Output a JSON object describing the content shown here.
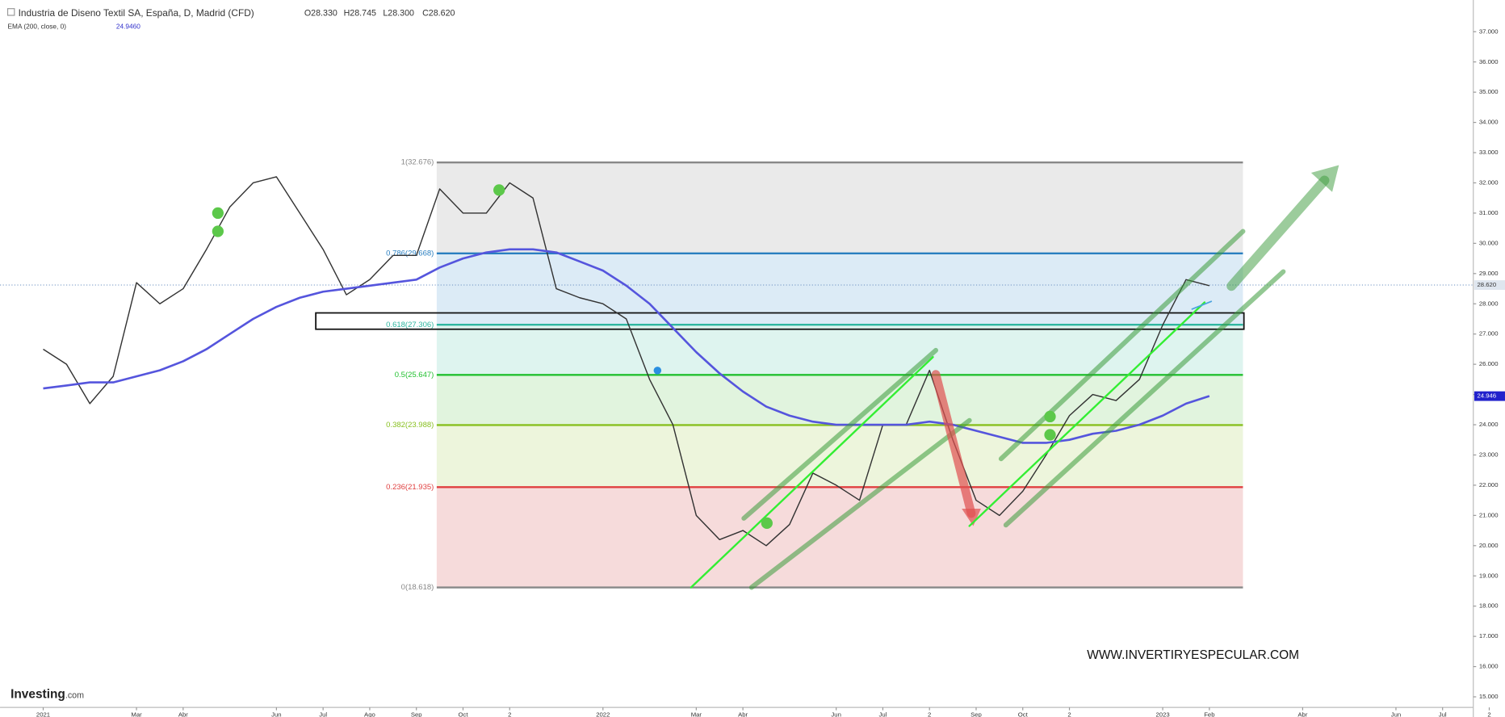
{
  "chart_data": {
    "type": "line",
    "title": "Industria de Diseno Textil SA, España, D, Madrid (CFD)",
    "ohlc": [
      "O28.330",
      "H28.745",
      "L28.300",
      "C28.620"
    ],
    "ema_header_value": "24.9460",
    "categories": [
      "2021",
      null,
      null,
      null,
      "Mar",
      null,
      "Abr",
      null,
      null,
      null,
      "Jun",
      null,
      "Jul",
      null,
      "Ago",
      null,
      "Sep",
      null,
      "Oct",
      null,
      "2",
      null,
      null,
      null,
      "2022",
      null,
      null,
      null,
      "Mar",
      null,
      "Abr",
      null,
      null,
      null,
      "Jun",
      null,
      "Jul",
      null,
      "2",
      null,
      "Sep",
      null,
      "Oct",
      null,
      "2",
      null,
      null,
      null,
      "2023",
      null,
      "Feb",
      null,
      null,
      null,
      "Abr",
      null,
      null,
      null,
      "Jun",
      null,
      "Jul",
      null,
      "2",
      null
    ],
    "series": [
      {
        "color": "#333333",
        "values": [
          26.5,
          26.0,
          24.7,
          25.6,
          28.7,
          28.0,
          28.5,
          29.8,
          31.2,
          32.0,
          32.2,
          31.0,
          29.8,
          28.3,
          28.8,
          29.6,
          29.6,
          31.8,
          31.0,
          31.0,
          32.0,
          31.5,
          28.5,
          28.2,
          28.0,
          27.5,
          25.5,
          24.0,
          21.0,
          20.2,
          20.5,
          20.0,
          20.7,
          22.4,
          22.0,
          21.5,
          24.0,
          24.0,
          25.8,
          23.5,
          21.5,
          21.0,
          21.8,
          23.0,
          24.3,
          25.0,
          24.8,
          25.5,
          27.3,
          28.8,
          28.6,
          null,
          null,
          null,
          null,
          null,
          null,
          null,
          null,
          null,
          null,
          null,
          null,
          null
        ]
      },
      {
        "name": "EMA (200, close, 0)",
        "color": "#5555dd",
        "values": [
          25.2,
          25.3,
          25.4,
          25.4,
          25.6,
          25.8,
          26.1,
          26.5,
          27.0,
          27.5,
          27.9,
          28.2,
          28.4,
          28.5,
          28.6,
          28.7,
          28.8,
          29.2,
          29.5,
          29.7,
          29.8,
          29.8,
          29.7,
          29.4,
          29.1,
          28.6,
          28.0,
          27.2,
          26.4,
          25.7,
          25.1,
          24.6,
          24.3,
          24.1,
          24.0,
          24.0,
          24.0,
          24.0,
          24.1,
          24.0,
          23.8,
          23.6,
          23.4,
          23.4,
          23.5,
          23.7,
          23.8,
          24.0,
          24.3,
          24.7,
          24.95,
          null,
          null,
          null,
          null,
          null,
          null,
          null,
          null,
          null,
          null,
          null,
          null,
          null
        ]
      }
    ],
    "ylim": [
      14.65,
      37.89
    ],
    "yticks": [
      {
        "value": 15,
        "label": "15.000"
      },
      {
        "value": 16,
        "label": "16.000"
      },
      {
        "value": 17,
        "label": "17.000"
      },
      {
        "value": 18,
        "label": "18.000"
      },
      {
        "value": 19,
        "label": "19.000"
      },
      {
        "value": 20,
        "label": "20.000"
      },
      {
        "value": 21,
        "label": "21.000"
      },
      {
        "value": 22,
        "label": "22.000"
      },
      {
        "value": 23,
        "label": "23.000"
      },
      {
        "value": 24,
        "label": "24.000"
      },
      {
        "value": 25,
        "label": "25.000"
      },
      {
        "value": 26,
        "label": "26.000"
      },
      {
        "value": 27,
        "label": "27.000"
      },
      {
        "value": 28,
        "label": "28.000"
      },
      {
        "value": 29,
        "label": "29.000"
      },
      {
        "value": 30,
        "label": "30.000"
      },
      {
        "value": 31,
        "label": "31.000"
      },
      {
        "value": 32,
        "label": "32.000"
      },
      {
        "value": 33,
        "label": "33.000"
      },
      {
        "value": 34,
        "label": "34.000"
      },
      {
        "value": 35,
        "label": "35.000"
      },
      {
        "value": 36,
        "label": "36.000"
      },
      {
        "value": 37,
        "label": "37.000"
      }
    ],
    "last_price": {
      "value": 28.62,
      "label": "28.620"
    },
    "ema_last": {
      "value": 24.946,
      "label": "24.946"
    },
    "fib_levels": [
      {
        "label": "1(32.676)",
        "value": 32.676,
        "color": "#888888",
        "band_color": "#e6e6e6"
      },
      {
        "label": "0.786(29.668)",
        "value": 29.668,
        "color": "#2a7fc0",
        "band_color": "#e6e6e6"
      },
      {
        "label": "0.618(27.306)",
        "value": 27.306,
        "color": "#2fb6a0",
        "band_color": "#d6e8f5"
      },
      {
        "label": "0.5(25.647)",
        "value": 25.647,
        "color": "#22c030",
        "band_color": "#d8f2ec"
      },
      {
        "label": "0.382(23.988)",
        "value": 23.988,
        "color": "#88c020",
        "band_color": "#dcf2d8"
      },
      {
        "label": "0.236(21.935)",
        "value": 21.935,
        "color": "#e04040",
        "band_color": "#eaf3d6"
      },
      {
        "label": "0(18.618)",
        "value": 18.618,
        "color": "#888888",
        "band_color": "#f4d5d5"
      }
    ],
    "watermark": "WWW.INVERTIRYESPECULAR.COM",
    "logo": "Investing",
    "logo_suffix": ".com"
  }
}
